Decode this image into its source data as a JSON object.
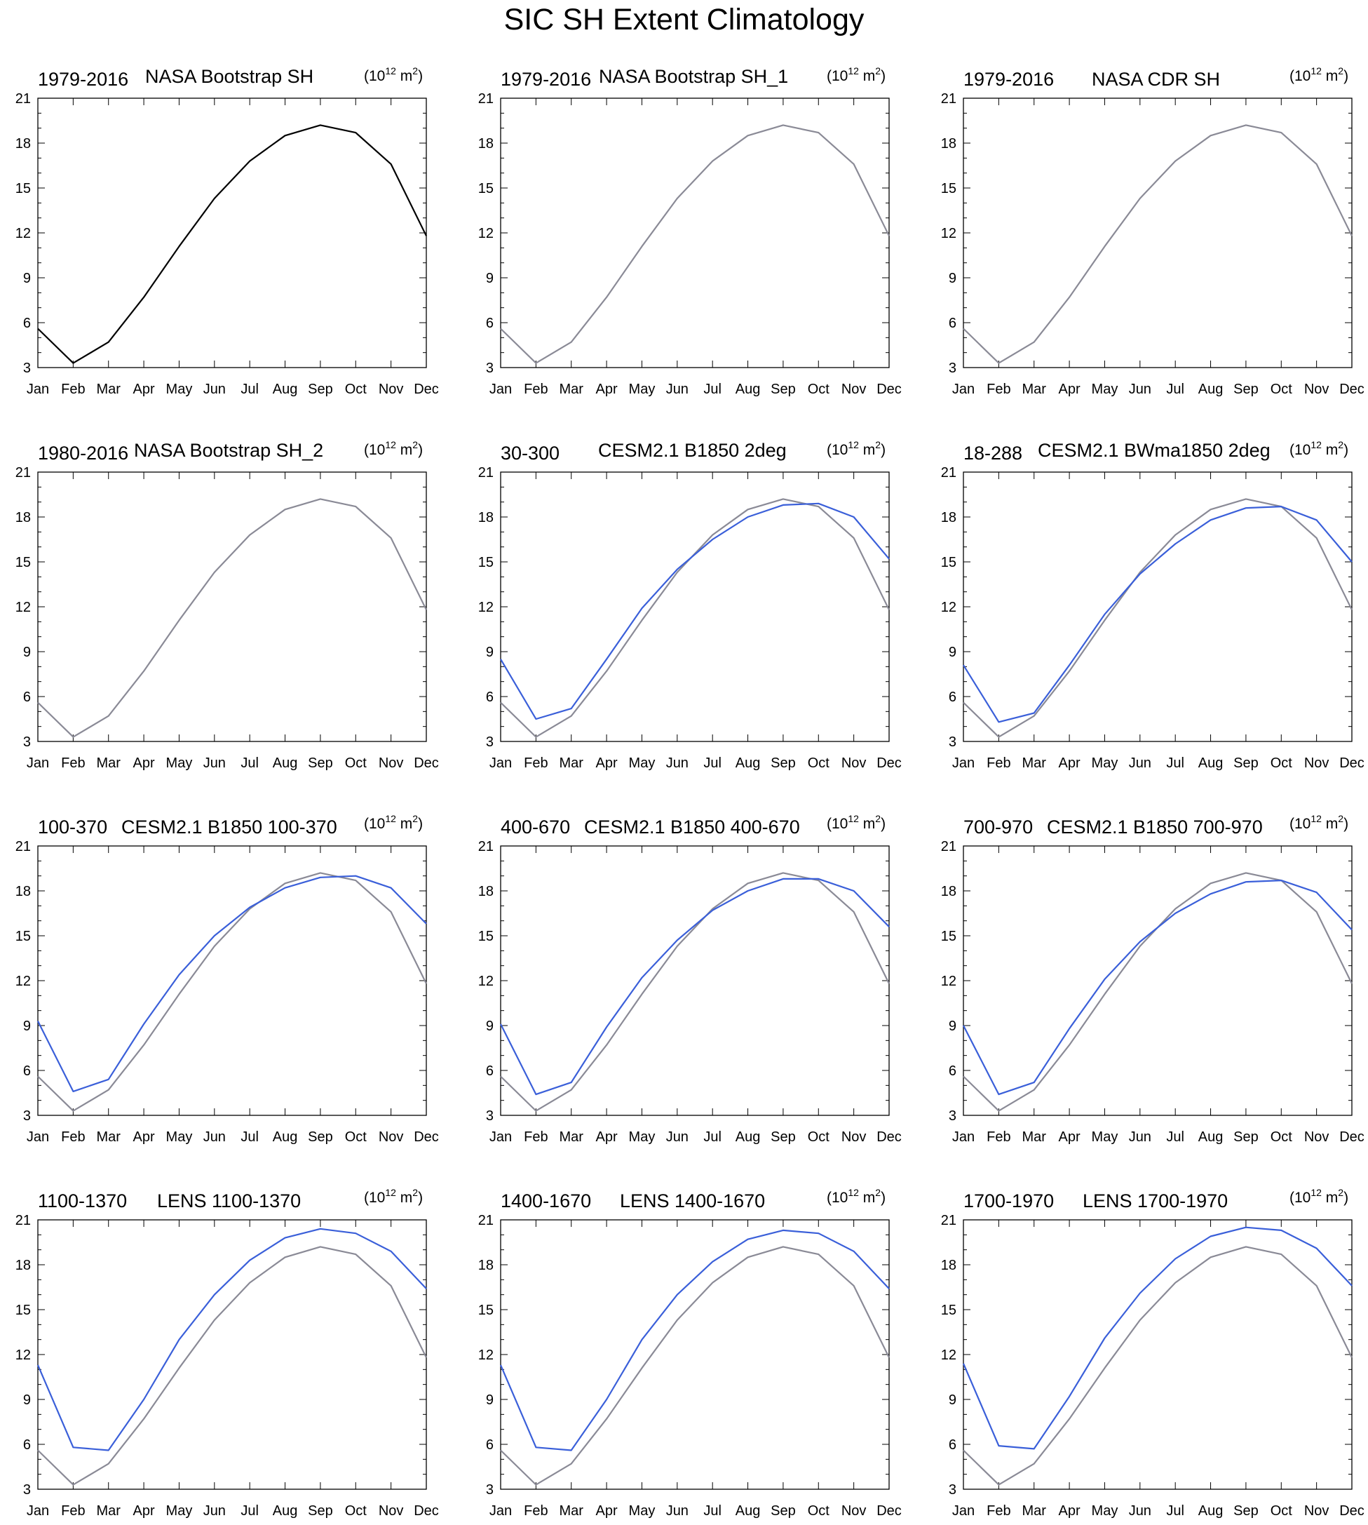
{
  "title": "SIC SH Extent Climatology",
  "chart_data": {
    "type": "line",
    "months": [
      "Jan",
      "Feb",
      "Mar",
      "Apr",
      "May",
      "Jun",
      "Jul",
      "Aug",
      "Sep",
      "Oct",
      "Nov",
      "Dec"
    ],
    "yticks": [
      3,
      6,
      9,
      12,
      15,
      18,
      21
    ],
    "ylim": [
      3,
      21
    ],
    "units_base": "10",
    "units_exp": "12",
    "units_tail": " m",
    "units_exp2": "2",
    "colors": {
      "obs_primary": "#000000",
      "obs_reference": "#8a8a96",
      "model": "#3a5fd9"
    },
    "reference": [
      5.6,
      3.3,
      4.7,
      7.7,
      11.1,
      14.3,
      16.8,
      18.5,
      19.2,
      18.7,
      16.6,
      11.8
    ],
    "panels": [
      {
        "period": "1979-2016",
        "name": "NASA Bootstrap SH",
        "style": "obs_primary",
        "values": null
      },
      {
        "period": "1979-2016",
        "name": "NASA Bootstrap SH_1",
        "style": "obs_reference",
        "values": null
      },
      {
        "period": "1979-2016",
        "name": "NASA CDR SH",
        "style": "obs_reference",
        "values": null
      },
      {
        "period": "1980-2016",
        "name": "NASA Bootstrap SH_2",
        "style": "obs_reference",
        "values": null
      },
      {
        "period": "30-300",
        "name": "CESM2.1 B1850 2deg",
        "style": "model",
        "values": [
          8.5,
          4.5,
          5.2,
          8.5,
          11.9,
          14.5,
          16.5,
          18.0,
          18.8,
          18.9,
          18.0,
          15.2
        ]
      },
      {
        "period": "18-288",
        "name": "CESM2.1 BWma1850 2deg",
        "style": "model",
        "values": [
          8.1,
          4.3,
          4.9,
          8.1,
          11.5,
          14.2,
          16.2,
          17.8,
          18.6,
          18.7,
          17.8,
          15.0
        ]
      },
      {
        "period": "100-370",
        "name": "CESM2.1 B1850 100-370",
        "style": "model",
        "values": [
          9.3,
          4.6,
          5.4,
          9.1,
          12.4,
          15.0,
          16.9,
          18.2,
          18.9,
          19.0,
          18.2,
          15.8
        ]
      },
      {
        "period": "400-670",
        "name": "CESM2.1 B1850 400-670",
        "style": "model",
        "values": [
          9.1,
          4.4,
          5.2,
          8.9,
          12.2,
          14.7,
          16.7,
          18.0,
          18.8,
          18.8,
          18.0,
          15.6
        ]
      },
      {
        "period": "700-970",
        "name": "CESM2.1 B1850 700-970",
        "style": "model",
        "values": [
          9.0,
          4.4,
          5.2,
          8.8,
          12.1,
          14.6,
          16.5,
          17.8,
          18.6,
          18.7,
          17.9,
          15.4
        ]
      },
      {
        "period": "1100-1370",
        "name": "LENS 1100-1370",
        "style": "model",
        "values": [
          11.3,
          5.8,
          5.6,
          9.0,
          13.0,
          16.0,
          18.3,
          19.8,
          20.4,
          20.1,
          18.9,
          16.4
        ]
      },
      {
        "period": "1400-1670",
        "name": "LENS 1400-1670",
        "style": "model",
        "values": [
          11.3,
          5.8,
          5.6,
          9.0,
          13.0,
          16.0,
          18.2,
          19.7,
          20.3,
          20.1,
          18.9,
          16.4
        ]
      },
      {
        "period": "1700-1970",
        "name": "LENS 1700-1970",
        "style": "model",
        "values": [
          11.4,
          5.9,
          5.7,
          9.2,
          13.1,
          16.1,
          18.4,
          19.9,
          20.5,
          20.3,
          19.1,
          16.6
        ]
      }
    ]
  }
}
